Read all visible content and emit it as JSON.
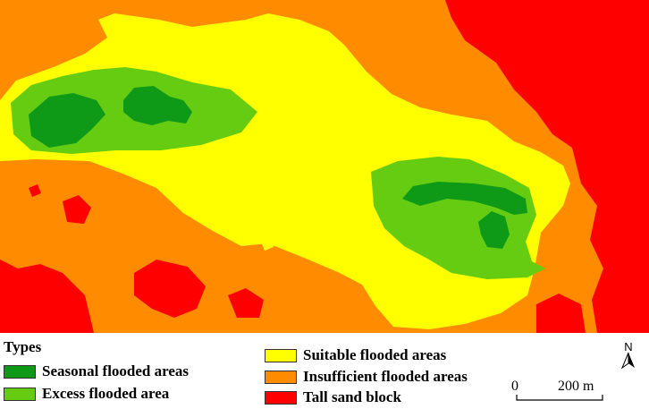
{
  "legend": {
    "title": "Types",
    "items": [
      {
        "label": "Seasonal flooded areas",
        "color": "#0e9a16"
      },
      {
        "label": "Excess flooded area",
        "color": "#66cc11"
      },
      {
        "label": "Suitable flooded areas",
        "color": "#ffff00"
      },
      {
        "label": "Insufficient flooded areas",
        "color": "#ff8c00"
      },
      {
        "label": "Tall sand block",
        "color": "#ff0000"
      }
    ]
  },
  "north_arrow": {
    "label": "N",
    "icon": "north-arrow-icon"
  },
  "scale_bar": {
    "start_label": "0",
    "end_label": "200 m"
  }
}
